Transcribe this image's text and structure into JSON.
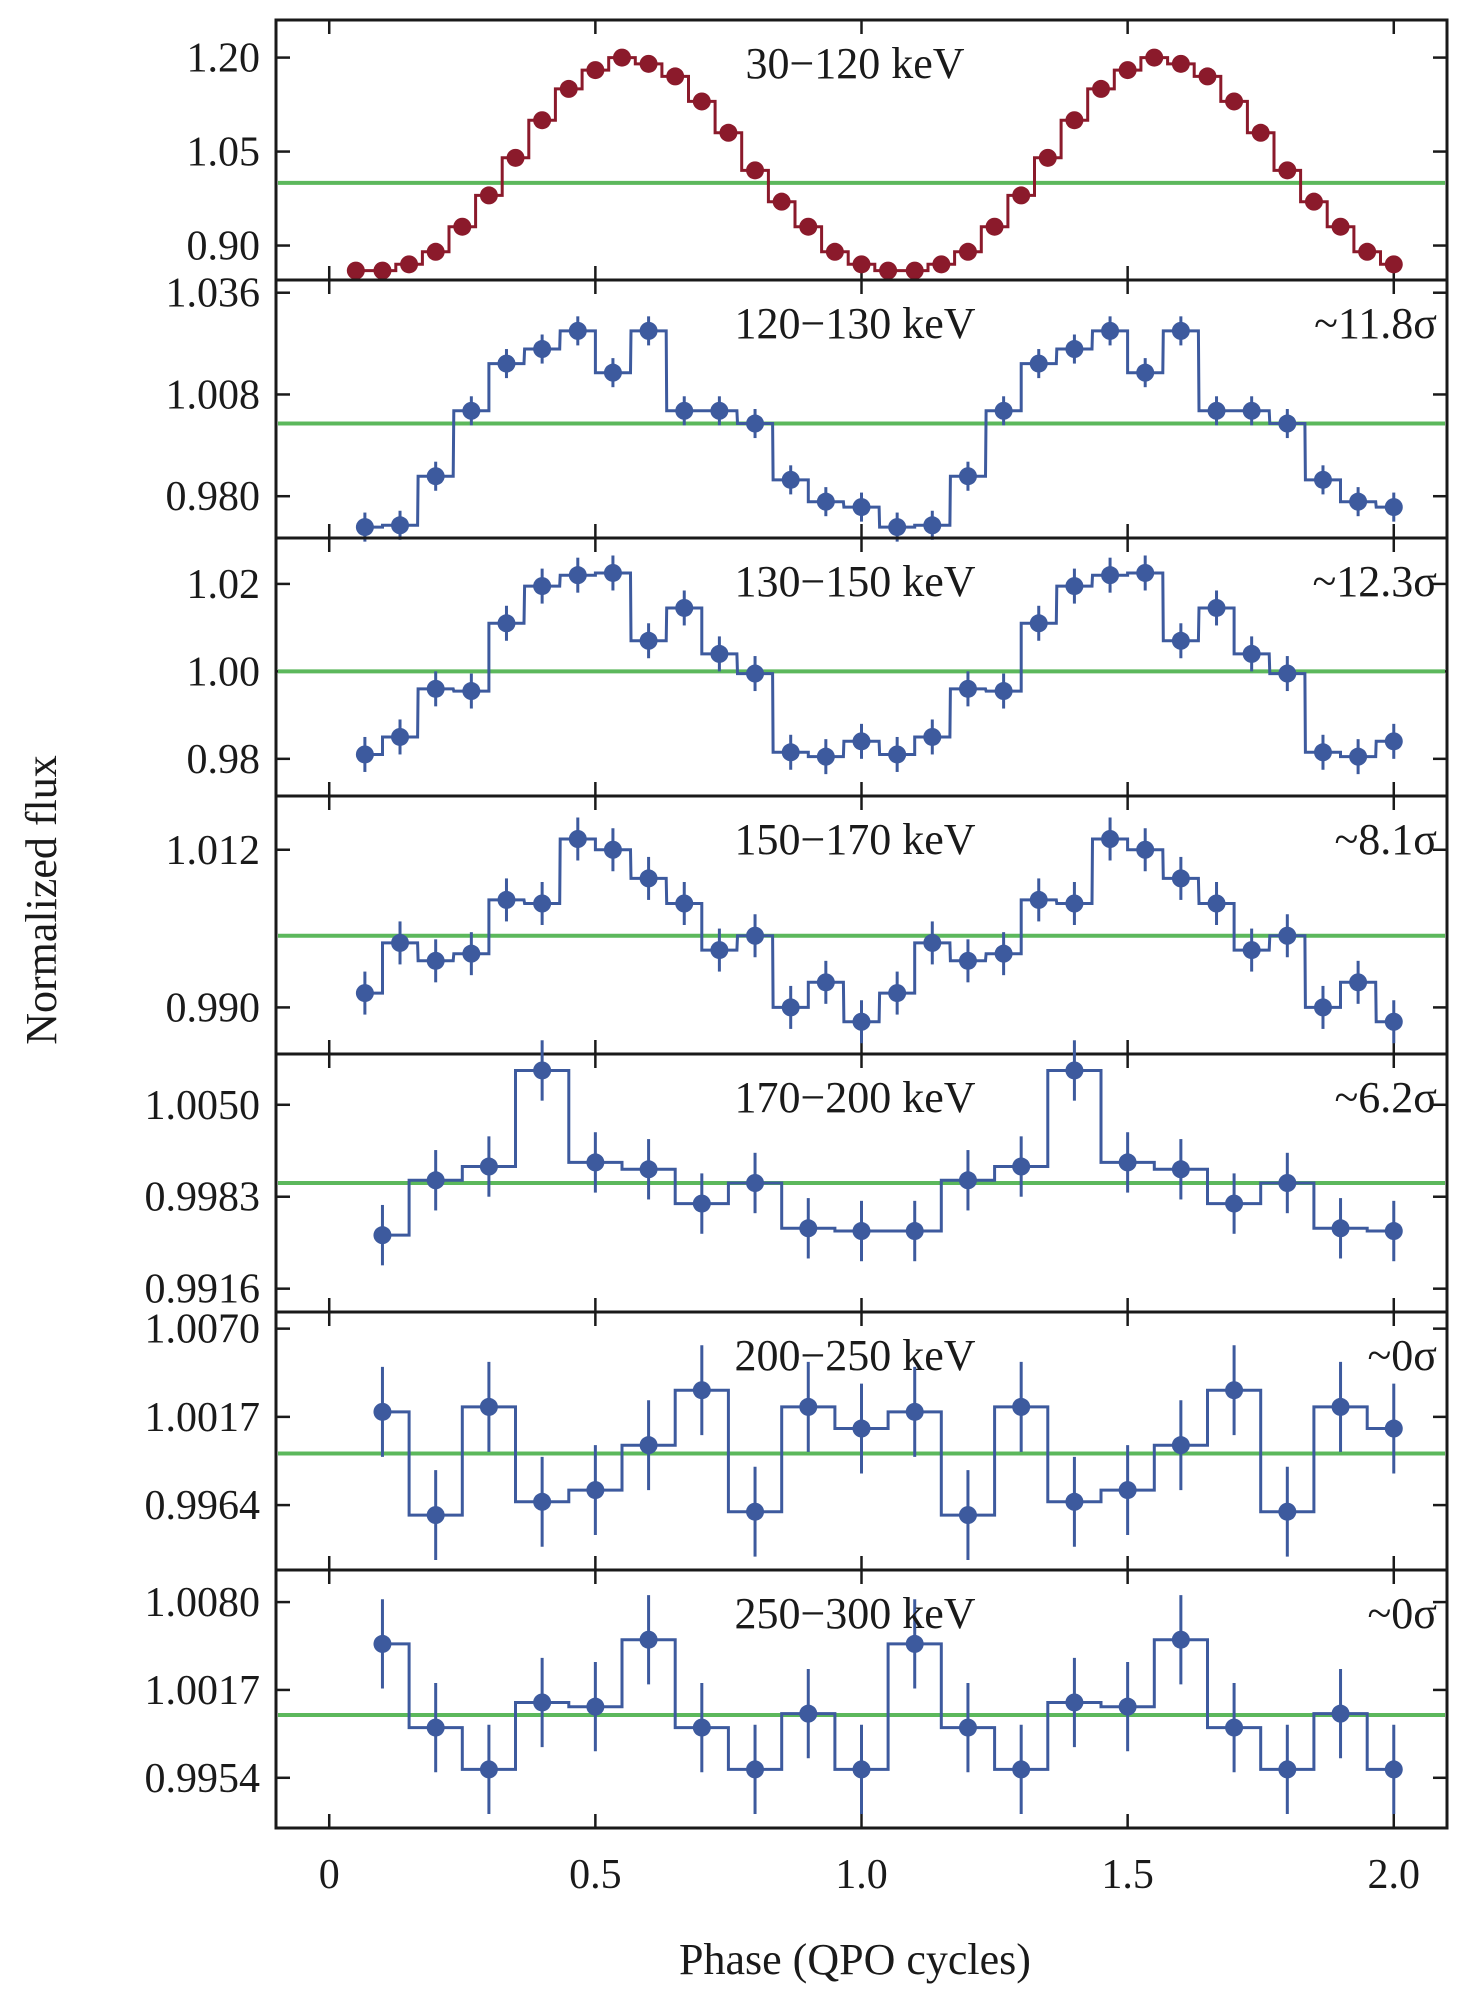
{
  "chart_data": {
    "type": "line",
    "xlabel": "Phase (QPO cycles)",
    "ylabel": "Normalized flux",
    "xlim": [
      -0.1,
      2.1
    ],
    "xticks": [
      {
        "value": 0,
        "label": "0"
      },
      {
        "value": 0.5,
        "label": "0.5"
      },
      {
        "value": 1.0,
        "label": "1.0"
      },
      {
        "value": 1.5,
        "label": "1.5"
      },
      {
        "value": 2.0,
        "label": "2.0"
      }
    ],
    "grid": false,
    "panels": [
      {
        "label": "30−120 keV",
        "significance": "",
        "color": "#8b1a2b",
        "step": "step",
        "ylim": [
          0.845,
          1.26
        ],
        "yticks": [
          {
            "value": 1.2,
            "label": "1.20"
          },
          {
            "value": 1.05,
            "label": "1.05"
          },
          {
            "value": 0.9,
            "label": "0.90"
          }
        ],
        "reference": 1.0,
        "x": [
          0.05,
          0.1,
          0.15,
          0.2,
          0.25,
          0.3,
          0.35,
          0.4,
          0.45,
          0.5,
          0.55,
          0.6,
          0.65,
          0.7,
          0.75,
          0.8,
          0.85,
          0.9,
          0.95,
          1.0,
          1.05,
          1.1,
          1.15,
          1.2,
          1.25,
          1.3,
          1.35,
          1.4,
          1.45,
          1.5,
          1.55,
          1.6,
          1.65,
          1.7,
          1.75,
          1.8,
          1.85,
          1.9,
          1.95,
          2.0
        ],
        "y": [
          0.86,
          0.86,
          0.87,
          0.89,
          0.93,
          0.98,
          1.04,
          1.1,
          1.15,
          1.18,
          1.2,
          1.19,
          1.17,
          1.13,
          1.08,
          1.02,
          0.97,
          0.93,
          0.89,
          0.87,
          0.86,
          0.86,
          0.87,
          0.89,
          0.93,
          0.98,
          1.04,
          1.1,
          1.15,
          1.18,
          1.2,
          1.19,
          1.17,
          1.13,
          1.08,
          1.02,
          0.97,
          0.93,
          0.89,
          0.87
        ],
        "err": []
      },
      {
        "label": "120−130 keV",
        "significance": "~11.8σ",
        "color": "#3d5a9e",
        "step": "step",
        "ylim": [
          0.9685,
          1.0395
        ],
        "yticks": [
          {
            "value": 1.036,
            "label": "1.036"
          },
          {
            "value": 1.008,
            "label": "1.008"
          },
          {
            "value": 0.98,
            "label": "0.980"
          }
        ],
        "reference": 1.0,
        "x": [
          0.067,
          0.133,
          0.2,
          0.267,
          0.333,
          0.4,
          0.467,
          0.533,
          0.6,
          0.667,
          0.733,
          0.8,
          0.867,
          0.933,
          1.0,
          1.067,
          1.133,
          1.2,
          1.267,
          1.333,
          1.4,
          1.467,
          1.533,
          1.6,
          1.667,
          1.733,
          1.8,
          1.867,
          1.933,
          2.0
        ],
        "y": [
          0.9715,
          0.972,
          0.9855,
          1.0035,
          1.0165,
          1.0205,
          1.0255,
          1.014,
          1.0255,
          1.0035,
          1.0035,
          1.0,
          0.9845,
          0.9785,
          0.977,
          0.9715,
          0.972,
          0.9855,
          1.0035,
          1.0165,
          1.0205,
          1.0255,
          1.014,
          1.0255,
          1.0035,
          1.0035,
          1.0,
          0.9845,
          0.9785,
          0.977
        ],
        "err": [
          0.004,
          0.004,
          0.004,
          0.004,
          0.004,
          0.004,
          0.004,
          0.004,
          0.004,
          0.004,
          0.004,
          0.004,
          0.004,
          0.004,
          0.004,
          0.004,
          0.004,
          0.004,
          0.004,
          0.004,
          0.004,
          0.004,
          0.004,
          0.004,
          0.004,
          0.004,
          0.004,
          0.004,
          0.004,
          0.004
        ]
      },
      {
        "label": "130−150 keV",
        "significance": "~12.3σ",
        "color": "#3d5a9e",
        "step": "step",
        "ylim": [
          0.9715,
          1.0305
        ],
        "yticks": [
          {
            "value": 1.02,
            "label": "1.02"
          },
          {
            "value": 1.0,
            "label": "1.00"
          },
          {
            "value": 0.98,
            "label": "0.98"
          }
        ],
        "reference": 1.0,
        "x": [
          0.067,
          0.133,
          0.2,
          0.267,
          0.333,
          0.4,
          0.467,
          0.533,
          0.6,
          0.667,
          0.733,
          0.8,
          0.867,
          0.933,
          1.0,
          1.067,
          1.133,
          1.2,
          1.267,
          1.333,
          1.4,
          1.467,
          1.533,
          1.6,
          1.667,
          1.733,
          1.8,
          1.867,
          1.933,
          2.0
        ],
        "y": [
          0.981,
          0.985,
          0.996,
          0.9955,
          1.011,
          1.0195,
          1.022,
          1.0225,
          1.007,
          1.0145,
          1.004,
          0.9995,
          0.9815,
          0.9805,
          0.984,
          0.981,
          0.985,
          0.996,
          0.9955,
          1.011,
          1.0195,
          1.022,
          1.0225,
          1.007,
          1.0145,
          1.004,
          0.9995,
          0.9815,
          0.9805,
          0.984
        ],
        "err": [
          0.004,
          0.004,
          0.004,
          0.004,
          0.004,
          0.004,
          0.004,
          0.004,
          0.004,
          0.004,
          0.004,
          0.004,
          0.004,
          0.004,
          0.004,
          0.004,
          0.004,
          0.004,
          0.004,
          0.004,
          0.004,
          0.004,
          0.004,
          0.004,
          0.004,
          0.004,
          0.004,
          0.004,
          0.004,
          0.004
        ]
      },
      {
        "label": "150−170 keV",
        "significance": "~8.1σ",
        "color": "#3d5a9e",
        "step": "step",
        "ylim": [
          0.9835,
          1.0195
        ],
        "yticks": [
          {
            "value": 1.012,
            "label": "1.012"
          },
          {
            "value": 0.99,
            "label": "0.990"
          }
        ],
        "reference": 1.0,
        "x": [
          0.067,
          0.133,
          0.2,
          0.267,
          0.333,
          0.4,
          0.467,
          0.533,
          0.6,
          0.667,
          0.733,
          0.8,
          0.867,
          0.933,
          1.0,
          1.067,
          1.133,
          1.2,
          1.267,
          1.333,
          1.4,
          1.467,
          1.533,
          1.6,
          1.667,
          1.733,
          1.8,
          1.867,
          1.933,
          2.0
        ],
        "y": [
          0.992,
          0.999,
          0.9965,
          0.9975,
          1.005,
          1.0045,
          1.0135,
          1.012,
          1.008,
          1.0045,
          0.998,
          1.0,
          0.99,
          0.9935,
          0.988,
          0.992,
          0.999,
          0.9965,
          0.9975,
          1.005,
          1.0045,
          1.0135,
          1.012,
          1.008,
          1.0045,
          0.998,
          1.0,
          0.99,
          0.9935,
          0.988
        ],
        "err": [
          0.003,
          0.003,
          0.003,
          0.003,
          0.003,
          0.003,
          0.003,
          0.003,
          0.003,
          0.003,
          0.003,
          0.003,
          0.003,
          0.003,
          0.003,
          0.003,
          0.003,
          0.003,
          0.003,
          0.003,
          0.003,
          0.003,
          0.003,
          0.003,
          0.003,
          0.003,
          0.003,
          0.003,
          0.003,
          0.003
        ]
      },
      {
        "label": "170−200 keV",
        "significance": "~6.2σ",
        "color": "#3d5a9e",
        "step": "step",
        "ylim": [
          0.9899,
          1.0087
        ],
        "yticks": [
          {
            "value": 1.005,
            "label": "1.0050"
          },
          {
            "value": 0.9983,
            "label": "0.9983"
          },
          {
            "value": 0.9916,
            "label": "0.9916"
          }
        ],
        "reference": 0.9993,
        "x": [
          0.1,
          0.2,
          0.3,
          0.4,
          0.5,
          0.6,
          0.7,
          0.8,
          0.9,
          1.0,
          1.1,
          1.2,
          1.3,
          1.4,
          1.5,
          1.6,
          1.7,
          1.8,
          1.9,
          2.0
        ],
        "y": [
          0.9955,
          0.9995,
          1.0005,
          1.0075,
          1.0008,
          1.0003,
          0.9978,
          0.9993,
          0.996,
          0.9958,
          0.9958,
          0.9995,
          1.0005,
          1.0075,
          1.0008,
          1.0003,
          0.9978,
          0.9993,
          0.996,
          0.9958
        ],
        "err": [
          0.0022,
          0.0022,
          0.0022,
          0.0022,
          0.0022,
          0.0022,
          0.0022,
          0.0022,
          0.0022,
          0.0022,
          0.0022,
          0.0022,
          0.0022,
          0.0022,
          0.0022,
          0.0022,
          0.0022,
          0.0022,
          0.0022,
          0.0022
        ]
      },
      {
        "label": "200−250 keV",
        "significance": "~0σ",
        "color": "#3d5a9e",
        "step": "step",
        "ylim": [
          0.9925,
          1.008
        ],
        "yticks": [
          {
            "value": 1.007,
            "label": "1.0070"
          },
          {
            "value": 1.0017,
            "label": "1.0017"
          },
          {
            "value": 0.9964,
            "label": "0.9964"
          }
        ],
        "reference": 0.9995,
        "x": [
          0.1,
          0.2,
          0.3,
          0.4,
          0.5,
          0.6,
          0.7,
          0.8,
          0.9,
          1.0,
          1.1,
          1.2,
          1.3,
          1.4,
          1.5,
          1.6,
          1.7,
          1.8,
          1.9,
          2.0
        ],
        "y": [
          1.002,
          0.9958,
          1.0023,
          0.9966,
          0.9973,
          1.0,
          1.0033,
          0.996,
          1.0023,
          1.001,
          1.002,
          0.9958,
          1.0023,
          0.9966,
          0.9973,
          1.0,
          1.0033,
          0.996,
          1.0023,
          1.001
        ],
        "err": [
          0.0027,
          0.0027,
          0.0027,
          0.0027,
          0.0027,
          0.0027,
          0.0027,
          0.0027,
          0.0027,
          0.0027,
          0.0027,
          0.0027,
          0.0027,
          0.0027,
          0.0027,
          0.0027,
          0.0027,
          0.0027,
          0.0027,
          0.0027
        ]
      },
      {
        "label": "250−300 keV",
        "significance": "~0σ",
        "color": "#3d5a9e",
        "step": "step",
        "ylim": [
          0.9918,
          1.0103
        ],
        "yticks": [
          {
            "value": 1.008,
            "label": "1.0080"
          },
          {
            "value": 1.0017,
            "label": "1.0017"
          },
          {
            "value": 0.9954,
            "label": "0.9954"
          }
        ],
        "reference": 0.9999,
        "x": [
          0.1,
          0.2,
          0.3,
          0.4,
          0.5,
          0.6,
          0.7,
          0.8,
          0.9,
          1.0,
          1.1,
          1.2,
          1.3,
          1.4,
          1.5,
          1.6,
          1.7,
          1.8,
          1.9,
          2.0
        ],
        "y": [
          1.005,
          0.999,
          0.996,
          1.0008,
          1.0005,
          1.0053,
          0.999,
          0.996,
          1.0,
          0.996,
          1.005,
          0.999,
          0.996,
          1.0008,
          1.0005,
          1.0053,
          0.999,
          0.996,
          1.0,
          0.996
        ],
        "err": [
          0.0032,
          0.0032,
          0.0032,
          0.0032,
          0.0032,
          0.0032,
          0.0032,
          0.0032,
          0.0032,
          0.0032,
          0.0032,
          0.0032,
          0.0032,
          0.0032,
          0.0032,
          0.0032,
          0.0032,
          0.0032,
          0.0032,
          0.0032
        ]
      }
    ],
    "reference_color": "#5cb85c"
  }
}
